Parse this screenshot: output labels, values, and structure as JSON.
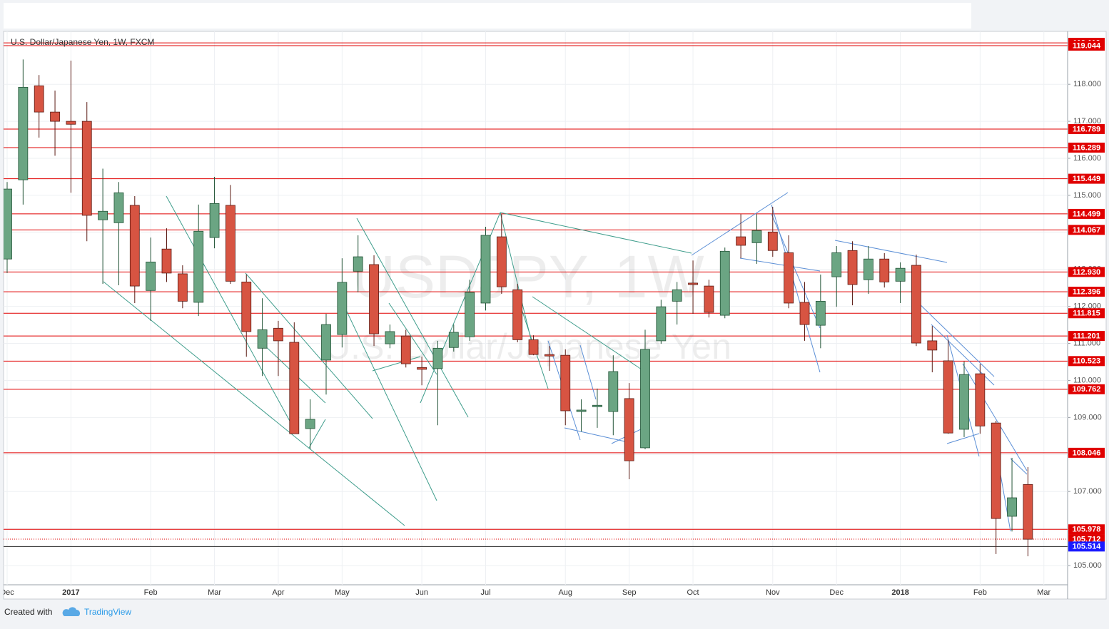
{
  "chart_data": {
    "type": "candlestick",
    "title": "U.S. Dollar/Japanese Yen, 1W, FXCM",
    "watermark": [
      "USDJPY, 1W",
      "U.S. Dollar/Japanese Yen"
    ],
    "categories": [
      "Dec",
      null,
      null,
      null,
      "2017",
      null,
      null,
      null,
      null,
      "Feb",
      null,
      null,
      null,
      "Mar",
      null,
      null,
      null,
      "Apr",
      null,
      null,
      null,
      "May",
      null,
      null,
      null,
      null,
      "Jun",
      null,
      null,
      null,
      "Jul",
      null,
      null,
      null,
      null,
      "Aug",
      null,
      null,
      null,
      "Sep",
      null,
      null,
      null,
      "Oct",
      null,
      null,
      null,
      null,
      "Nov",
      null,
      null,
      null,
      "Dec",
      null,
      null,
      null,
      "2018",
      null,
      null,
      null,
      null,
      "Feb",
      null,
      null,
      null,
      "Mar"
    ],
    "open": [
      113.28,
      115.42,
      117.96,
      117.25,
      117.0,
      117.0,
      114.34,
      114.26,
      114.73,
      112.43,
      113.55,
      112.88,
      112.11,
      113.86,
      114.73,
      112.66,
      110.87,
      111.41,
      111.03,
      108.7,
      110.55,
      111.24,
      112.95,
      113.13,
      110.99,
      111.2,
      110.35,
      110.32,
      110.89,
      111.18,
      112.09,
      113.88,
      112.45,
      111.1,
      110.7,
      110.68,
      109.16,
      109.29,
      109.16,
      109.51,
      108.18,
      111.07,
      112.14,
      112.63,
      112.55,
      111.76,
      113.88,
      113.72,
      114.01,
      113.45,
      112.11,
      111.49,
      112.8,
      113.51,
      112.72,
      113.28,
      112.68,
      113.11,
      111.07,
      110.53,
      108.68,
      110.18,
      108.85,
      106.33,
      107.19,
      null
    ],
    "high": [
      115.36,
      118.67,
      118.25,
      117.83,
      118.64,
      117.52,
      115.72,
      115.36,
      114.98,
      113.86,
      114.11,
      113.11,
      114.75,
      115.5,
      115.28,
      112.86,
      112.22,
      111.61,
      111.57,
      109.49,
      111.8,
      113.3,
      113.92,
      113.38,
      111.51,
      111.37,
      110.64,
      111.07,
      111.51,
      112.72,
      114.15,
      114.49,
      112.61,
      111.22,
      110.93,
      110.84,
      109.49,
      109.78,
      110.68,
      109.93,
      111.37,
      112.18,
      112.66,
      113.24,
      112.72,
      113.59,
      114.49,
      114.49,
      114.69,
      113.92,
      112.66,
      112.86,
      113.63,
      113.76,
      113.63,
      113.44,
      113.19,
      113.4,
      111.47,
      111.1,
      110.51,
      110.45,
      108.91,
      107.91,
      107.66,
      null
    ],
    "low": [
      112.9,
      114.75,
      116.56,
      116.07,
      115.07,
      113.76,
      112.61,
      112.57,
      112.09,
      111.61,
      112.66,
      111.95,
      111.74,
      113.57,
      112.61,
      110.64,
      110.12,
      110.12,
      108.56,
      108.14,
      109.62,
      110.89,
      112.38,
      110.93,
      110.87,
      110.35,
      109.87,
      108.79,
      110.78,
      111.07,
      111.89,
      112.34,
      111.03,
      110.68,
      110.26,
      108.79,
      108.62,
      108.72,
      108.52,
      107.33,
      108.14,
      110.99,
      111.51,
      111.8,
      111.7,
      111.68,
      113.3,
      113.15,
      113.34,
      111.95,
      111.07,
      110.87,
      111.99,
      112.03,
      112.34,
      112.51,
      112.09,
      110.93,
      110.22,
      108.56,
      108.47,
      108.56,
      105.31,
      105.92,
      105.25,
      null
    ],
    "close": [
      115.17,
      117.92,
      117.25,
      117.0,
      116.92,
      114.46,
      114.57,
      115.07,
      112.55,
      113.2,
      112.9,
      112.14,
      114.03,
      114.78,
      112.68,
      111.32,
      111.37,
      111.07,
      108.56,
      108.95,
      111.51,
      112.65,
      113.34,
      111.26,
      111.32,
      110.45,
      110.3,
      110.87,
      111.3,
      112.38,
      113.92,
      112.53,
      111.1,
      110.7,
      110.66,
      109.18,
      109.2,
      109.33,
      110.24,
      107.83,
      110.84,
      111.99,
      112.45,
      112.59,
      111.84,
      113.49,
      113.65,
      114.05,
      113.51,
      112.09,
      111.51,
      112.14,
      113.45,
      112.59,
      113.28,
      112.66,
      113.03,
      111.01,
      110.82,
      108.58,
      110.16,
      108.77,
      106.27,
      106.83,
      105.71,
      null
    ],
    "up_color": "#6ba583",
    "down_color": "#d75442",
    "ylim": [
      104.48,
      119.41
    ],
    "yticks": [
      {
        "value": 105,
        "label": "105.000"
      },
      {
        "value": 106,
        "label": "106.000"
      },
      {
        "value": 107,
        "label": "107.000"
      },
      {
        "value": 108,
        "label": "108.000"
      },
      {
        "value": 109,
        "label": "109.000"
      },
      {
        "value": 110,
        "label": "110.000"
      },
      {
        "value": 111,
        "label": "111.000"
      },
      {
        "value": 112,
        "label": "112.000"
      },
      {
        "value": 113,
        "label": "113.000"
      },
      {
        "value": 114,
        "label": "114.000"
      },
      {
        "value": 115,
        "label": "115.000"
      },
      {
        "value": 116,
        "label": "116.000"
      },
      {
        "value": 117,
        "label": "117.000"
      },
      {
        "value": 118,
        "label": "118.000"
      }
    ],
    "price_lines": [
      {
        "value": 119.119,
        "label": "119.119"
      },
      {
        "value": 119.044,
        "label": "119.044"
      },
      {
        "value": 116.789,
        "label": "116.789"
      },
      {
        "value": 116.289,
        "label": "116.289"
      },
      {
        "value": 115.449,
        "label": "115.449"
      },
      {
        "value": 114.499,
        "label": "114.499"
      },
      {
        "value": 114.067,
        "label": "114.067"
      },
      {
        "value": 112.93,
        "label": "112.930"
      },
      {
        "value": 112.396,
        "label": "112.396"
      },
      {
        "value": 111.815,
        "label": "111.815"
      },
      {
        "value": 111.201,
        "label": "111.201"
      },
      {
        "value": 110.523,
        "label": "110.523"
      },
      {
        "value": 109.762,
        "label": "109.762"
      },
      {
        "value": 108.046,
        "label": "108.046"
      },
      {
        "value": 105.978,
        "label": "105.978"
      }
    ],
    "line_color": "#e00000",
    "last_close_line": {
      "value": 105.712,
      "label": "105.712"
    },
    "current_price": {
      "value": 105.514,
      "label": "105.514"
    },
    "current_price_color": "#1a1aff",
    "grid": true
  },
  "footer": {
    "created": "Created with",
    "brand": "TradingView"
  }
}
